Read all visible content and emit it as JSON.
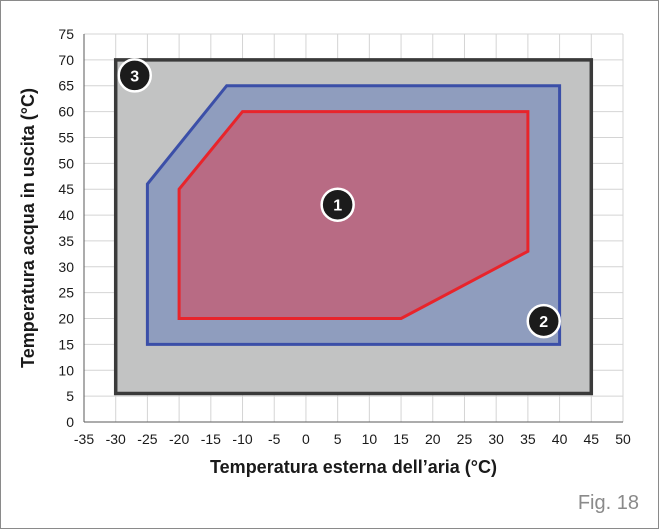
{
  "chart_data": {
    "type": "area",
    "xlabel": "Temperatura esterna dell’aria (°C)",
    "ylabel": "Temperatura acqua in uscita (°C)",
    "xlim": [
      -35,
      50
    ],
    "ylim": [
      0,
      75
    ],
    "xticks": [
      -35,
      -30,
      -25,
      -20,
      -15,
      -10,
      -5,
      0,
      5,
      10,
      15,
      20,
      25,
      30,
      35,
      40,
      45,
      50
    ],
    "yticks": [
      0,
      5,
      10,
      15,
      20,
      25,
      30,
      35,
      40,
      45,
      50,
      55,
      60,
      65,
      70,
      75
    ],
    "grid": true,
    "regions": [
      {
        "label": "3",
        "fill": "#c2c3c3",
        "stroke": "#3a3a3a",
        "points": [
          [
            -30,
            5.5
          ],
          [
            -30,
            70
          ],
          [
            45,
            70
          ],
          [
            45,
            5.5
          ]
        ],
        "marker": [
          -27,
          67
        ]
      },
      {
        "label": "2",
        "fill": "#8f9dbe",
        "stroke": "#3b4fa8",
        "points": [
          [
            -25,
            15
          ],
          [
            -25,
            46
          ],
          [
            -12.5,
            65
          ],
          [
            40,
            65
          ],
          [
            40,
            15
          ]
        ],
        "marker": [
          37.5,
          19.5
        ]
      },
      {
        "label": "1",
        "fill": "#b86b84",
        "stroke": "#e8242b",
        "points": [
          [
            -20,
            20
          ],
          [
            -20,
            45
          ],
          [
            -10,
            60
          ],
          [
            35,
            60
          ],
          [
            35,
            33
          ],
          [
            15,
            20
          ]
        ],
        "marker": [
          5,
          42
        ]
      }
    ]
  },
  "caption": "Fig. 18"
}
